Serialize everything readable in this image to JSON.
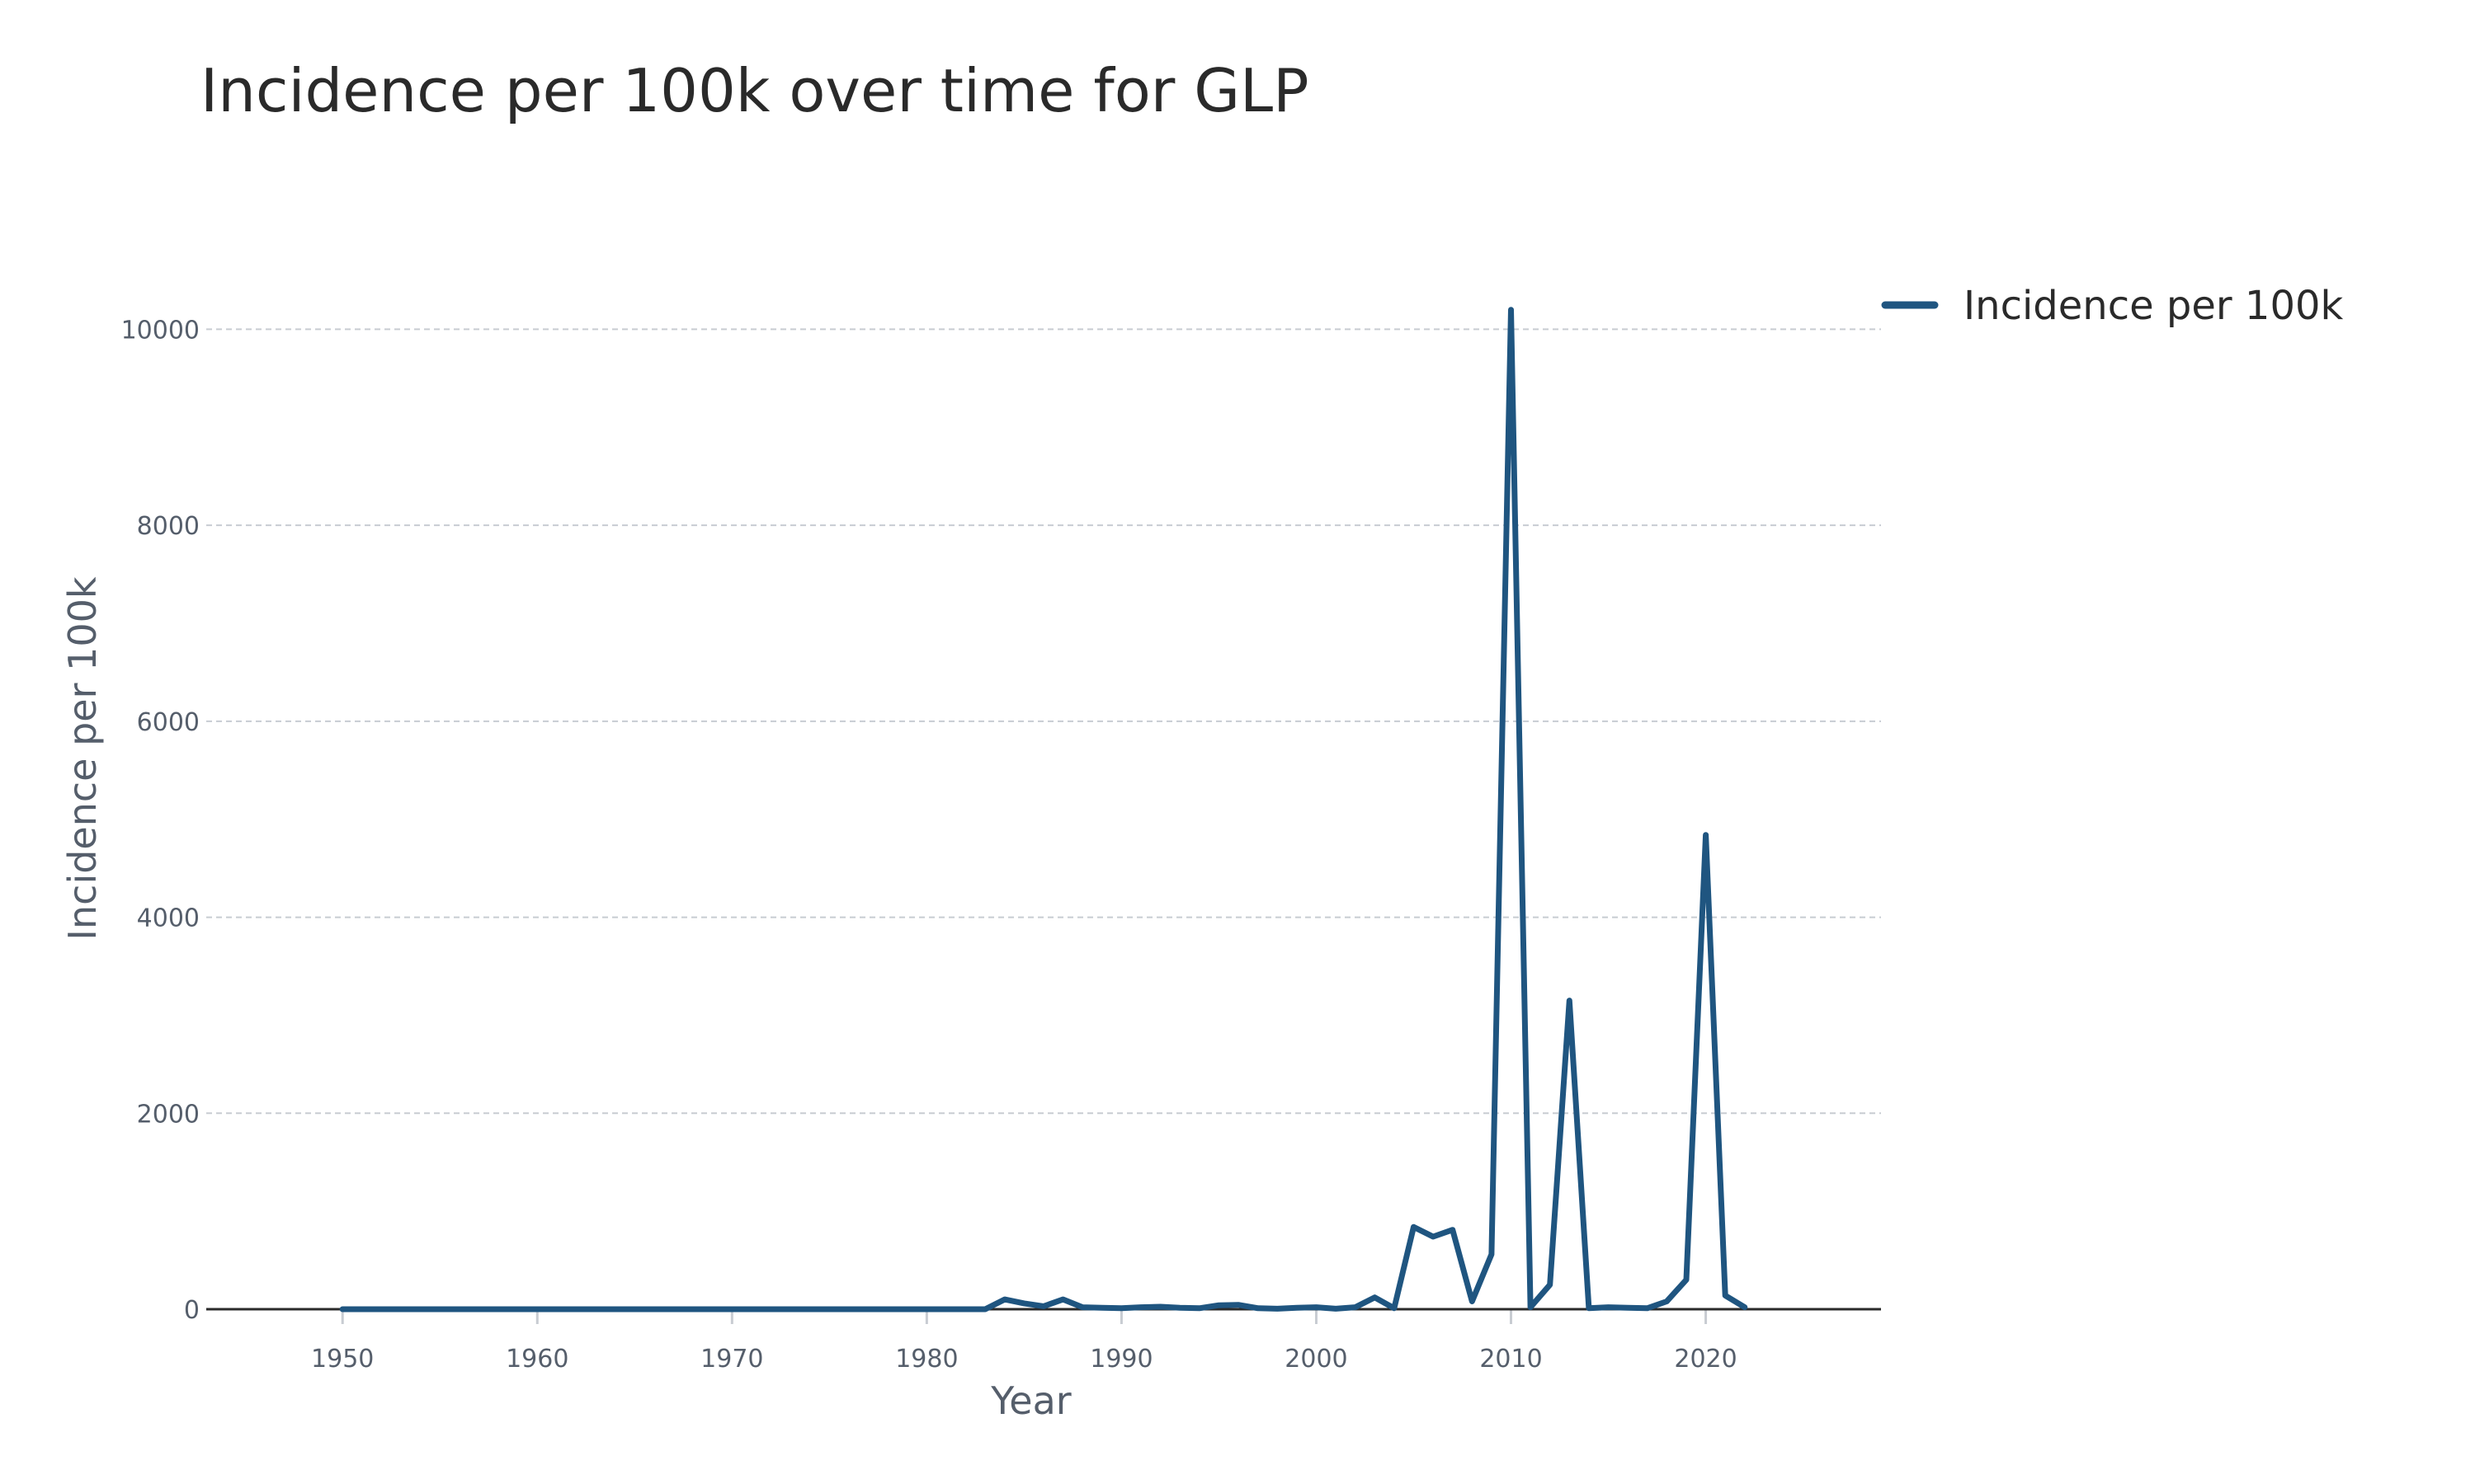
{
  "chart_data": {
    "type": "line",
    "title": "Incidence per 100k over time for GLP",
    "xlabel": "Year",
    "ylabel": "Incidence per 100k",
    "xlim": [
      1943,
      2029
    ],
    "ylim": [
      0,
      10500
    ],
    "x_ticks": [
      1950,
      1960,
      1970,
      1980,
      1990,
      2000,
      2010,
      2020
    ],
    "y_ticks": [
      0,
      2000,
      4000,
      6000,
      8000,
      10000
    ],
    "grid": true,
    "legend_position": "top-right",
    "series": [
      {
        "name": "Incidence per 100k",
        "color": "#1f5580",
        "x": [
          1950,
          1951,
          1952,
          1953,
          1954,
          1955,
          1956,
          1957,
          1958,
          1959,
          1960,
          1961,
          1962,
          1963,
          1964,
          1965,
          1966,
          1967,
          1968,
          1969,
          1970,
          1971,
          1972,
          1973,
          1974,
          1975,
          1976,
          1977,
          1978,
          1979,
          1980,
          1981,
          1982,
          1983,
          1984,
          1985,
          1986,
          1987,
          1988,
          1989,
          1990,
          1991,
          1992,
          1993,
          1994,
          1995,
          1996,
          1997,
          1998,
          1999,
          2000,
          2001,
          2002,
          2003,
          2004,
          2005,
          2006,
          2007,
          2008,
          2009,
          2010,
          2011,
          2012,
          2013,
          2014,
          2015,
          2016,
          2017,
          2018,
          2019,
          2020,
          2021,
          2022
        ],
        "y": [
          0,
          0,
          0,
          0,
          0,
          0,
          0,
          0,
          0,
          0,
          0,
          0,
          0,
          0,
          0,
          0,
          0,
          0,
          0,
          0,
          0,
          0,
          0,
          0,
          0,
          0,
          0,
          0,
          0,
          0,
          0,
          0,
          0,
          0,
          100,
          60,
          30,
          100,
          20,
          15,
          10,
          20,
          25,
          15,
          10,
          40,
          45,
          10,
          5,
          15,
          20,
          5,
          20,
          120,
          10,
          840,
          740,
          810,
          80,
          560,
          10200,
          20,
          250,
          3150,
          10,
          20,
          15,
          10,
          80,
          300,
          4840,
          140,
          20
        ]
      }
    ]
  }
}
